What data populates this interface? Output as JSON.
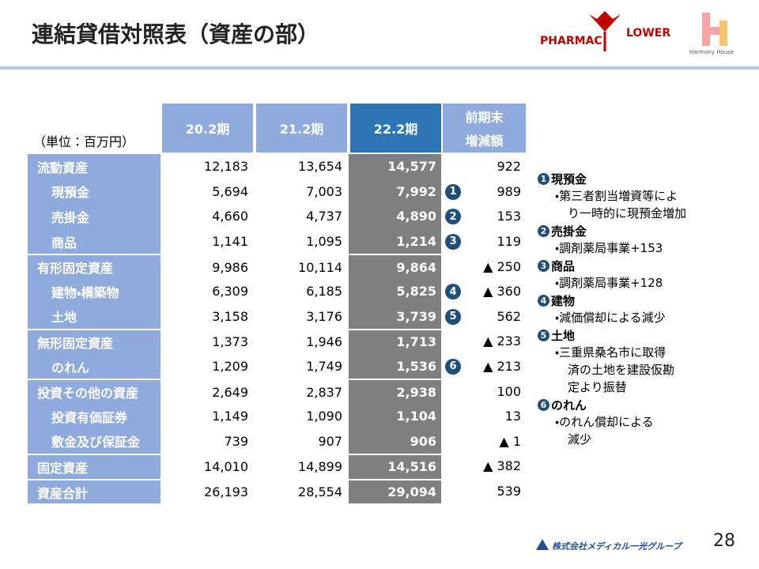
{
  "header": {
    "title": "連結貸借対照表（資産の部）",
    "logo1_left": "PHARMAC",
    "logo1_right": "LOWER",
    "logo2": "Harmony House"
  },
  "table": {
    "unit": "（単位：百万円）",
    "columns": [
      "20.2期",
      "21.2期",
      "22.2期"
    ],
    "change_header": [
      "前期末",
      "増減額"
    ],
    "rows": [
      {
        "label": "流動資産",
        "values": [
          "12,183",
          "13,654",
          "14,577"
        ],
        "badge": null,
        "change": "922",
        "indent": false
      },
      {
        "label": "現預金",
        "values": [
          "5,694",
          "7,003",
          "7,992"
        ],
        "badge": "1",
        "change": "989",
        "indent": true
      },
      {
        "label": "売掛金",
        "values": [
          "4,660",
          "4,737",
          "4,890"
        ],
        "badge": "2",
        "change": "153",
        "indent": true
      },
      {
        "label": "商品",
        "values": [
          "1,141",
          "1,095",
          "1,214"
        ],
        "badge": "3",
        "change": "119",
        "indent": true
      },
      {
        "label": "有形固定資産",
        "values": [
          "9,986",
          "10,114",
          "9,864"
        ],
        "badge": null,
        "change": "▲ 250",
        "indent": false
      },
      {
        "label": "建物・構築物",
        "values": [
          "6,309",
          "6,185",
          "5,825"
        ],
        "badge": "4",
        "change": "▲ 360",
        "indent": true
      },
      {
        "label": "土地",
        "values": [
          "3,158",
          "3,176",
          "3,739"
        ],
        "badge": "5",
        "change": "562",
        "indent": true
      },
      {
        "label": "無形固定資産",
        "values": [
          "1,373",
          "1,946",
          "1,713"
        ],
        "badge": null,
        "change": "▲ 233",
        "indent": false
      },
      {
        "label": "のれん",
        "values": [
          "1,209",
          "1,749",
          "1,536"
        ],
        "badge": "6",
        "change": "▲ 213",
        "indent": true
      },
      {
        "label": "投資その他の資産",
        "values": [
          "2,649",
          "2,837",
          "2,938"
        ],
        "badge": null,
        "change": "100",
        "indent": false
      },
      {
        "label": "投資有価証券",
        "values": [
          "1,149",
          "1,090",
          "1,104"
        ],
        "badge": null,
        "change": "13",
        "indent": true
      },
      {
        "label": "敷金及び保証金",
        "values": [
          "739",
          "907",
          "906"
        ],
        "badge": null,
        "change": "▲ 1",
        "indent": true
      },
      {
        "label": "固定資産",
        "values": [
          "14,010",
          "14,899",
          "14,516"
        ],
        "badge": null,
        "change": "▲ 382",
        "indent": false
      },
      {
        "label": "資産合計",
        "values": [
          "26,193",
          "28,554",
          "29,094"
        ],
        "badge": null,
        "change": "539",
        "indent": false
      }
    ]
  },
  "notes": [
    {
      "badge": "1",
      "title": "現預金",
      "lines": [
        "・第三者割当増資等によ",
        "り一時的に現預金増加"
      ]
    },
    {
      "badge": "2",
      "title": "売掛金",
      "lines": [
        "・調剤薬局事業+153"
      ]
    },
    {
      "badge": "3",
      "title": "商品",
      "lines": [
        "・調剤薬局事業+128"
      ]
    },
    {
      "badge": "4",
      "title": "建物",
      "lines": [
        "・減価償却による減少"
      ]
    },
    {
      "badge": "5",
      "title": "土地",
      "lines": [
        "・三重県桑名市に取得",
        "済の土地を建設仮勘",
        "定より振替"
      ]
    },
    {
      "badge": "6",
      "title": "のれん",
      "lines": [
        "・のれん償却による",
        "減少"
      ]
    }
  ],
  "footer": {
    "company": "株式会社メディカル一光グループ",
    "page": "28"
  }
}
